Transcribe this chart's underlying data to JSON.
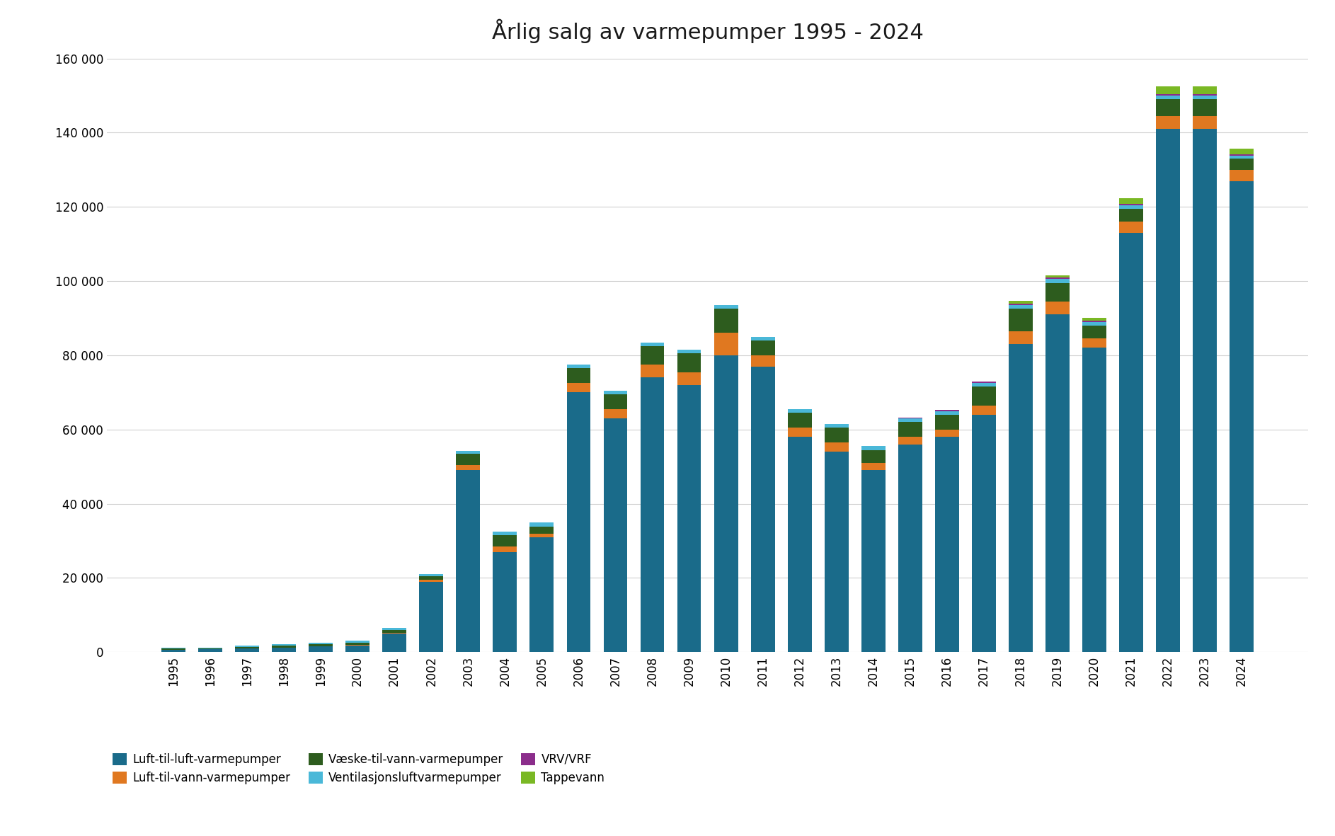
{
  "title": "Årlig salg av varmepumper 1995 - 2024",
  "years": [
    1995,
    1996,
    1997,
    1998,
    1999,
    2000,
    2001,
    2002,
    2003,
    2004,
    2005,
    2006,
    2007,
    2008,
    2009,
    2010,
    2011,
    2012,
    2013,
    2014,
    2015,
    2016,
    2017,
    2018,
    2019,
    2020,
    2021,
    2022,
    2023,
    2024
  ],
  "luft_luft": [
    700,
    800,
    1000,
    1200,
    1500,
    1800,
    5000,
    19000,
    49000,
    27000,
    31000,
    70000,
    63000,
    74000,
    72000,
    80000,
    77000,
    58000,
    54000,
    49000,
    56000,
    58000,
    64000,
    83000,
    91000,
    82000,
    113000,
    141000,
    141000,
    127000
  ],
  "luft_vann": [
    0,
    0,
    0,
    0,
    0,
    100,
    200,
    500,
    1500,
    1500,
    900,
    2500,
    2500,
    3500,
    3500,
    6000,
    3000,
    2500,
    2500,
    2000,
    2000,
    2000,
    2500,
    3500,
    3500,
    2500,
    3000,
    3500,
    3500,
    3000
  ],
  "vaeske_vann": [
    200,
    200,
    400,
    500,
    600,
    700,
    800,
    1000,
    3000,
    3000,
    2000,
    4000,
    4000,
    5000,
    5000,
    6500,
    4000,
    4000,
    4000,
    3500,
    4000,
    4000,
    5000,
    6000,
    5000,
    3500,
    3500,
    4500,
    4500,
    3000
  ],
  "ventilasjon": [
    200,
    200,
    300,
    400,
    400,
    500,
    500,
    600,
    700,
    1000,
    1000,
    1000,
    1000,
    1000,
    1000,
    1000,
    1000,
    1000,
    1000,
    1000,
    1000,
    1000,
    1000,
    1000,
    1000,
    1000,
    1000,
    1000,
    1000,
    800
  ],
  "vrv_vrf": [
    0,
    0,
    0,
    0,
    0,
    0,
    0,
    0,
    0,
    0,
    0,
    0,
    0,
    0,
    0,
    0,
    0,
    0,
    0,
    0,
    200,
    300,
    400,
    400,
    400,
    400,
    400,
    400,
    400,
    400
  ],
  "tappevann": [
    0,
    0,
    0,
    0,
    0,
    0,
    0,
    0,
    0,
    0,
    0,
    0,
    0,
    0,
    0,
    0,
    0,
    0,
    0,
    0,
    0,
    0,
    0,
    700,
    700,
    700,
    1500,
    2000,
    2000,
    1500
  ],
  "colors": {
    "luft_luft": "#1a6b8a",
    "luft_vann": "#e07820",
    "vaeske_vann": "#2d5c1e",
    "ventilasjon": "#4ab8d8",
    "vrv_vrf": "#8b2d8b",
    "tappevann": "#7ab824"
  },
  "legend_labels": {
    "luft_luft": "Luft-til-luft-varmepumper",
    "luft_vann": "Luft-til-vann-varmepumper",
    "vaeske_vann": "Væske-til-vann-varmepumper",
    "ventilasjon": "Ventilasjonsluftvarmepumper",
    "vrv_vrf": "VRV/VRF",
    "tappevann": "Tappevann"
  },
  "ylim": [
    0,
    160000
  ],
  "yticks": [
    0,
    20000,
    40000,
    60000,
    80000,
    100000,
    120000,
    140000,
    160000
  ],
  "background_color": "#ffffff",
  "title_fontsize": 22
}
